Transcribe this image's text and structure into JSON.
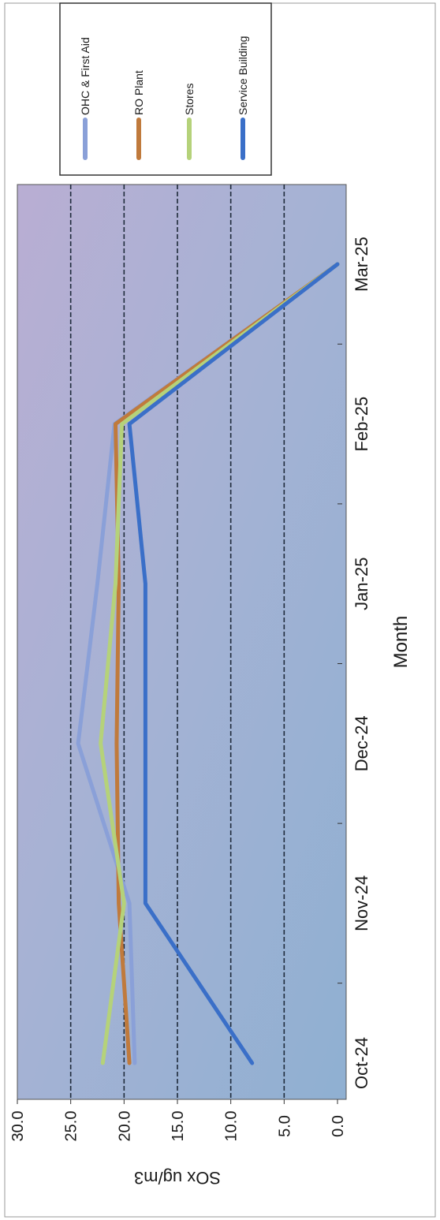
{
  "chart_data": {
    "type": "line",
    "orientation": "rotated-90-clockwise",
    "categories": [
      "Oct-24",
      "Nov-24",
      "Dec-24",
      "Jan-25",
      "Feb-25",
      "Mar-25"
    ],
    "series": [
      {
        "name": "OHC & First Aid",
        "color": "#8aa0d8",
        "values": [
          19.0,
          19.5,
          24.3,
          22.5,
          20.9,
          0.0
        ]
      },
      {
        "name": "RO Plant",
        "color": "#c07a3c",
        "values": [
          19.5,
          20.5,
          20.7,
          20.5,
          20.8,
          0.0
        ]
      },
      {
        "name": "Stores",
        "color": "#b5d27a",
        "values": [
          22.0,
          20.0,
          22.2,
          20.8,
          20.2,
          0.0
        ]
      },
      {
        "name": "Service Building",
        "color": "#3a6fc8",
        "values": [
          8.0,
          18.0,
          18.0,
          18.0,
          19.5,
          0.0
        ]
      }
    ],
    "ylabel": "SOx ug/m3",
    "xlabel": "Month",
    "ylim": [
      0,
      30
    ],
    "yticks": [
      "0.0",
      "5.0",
      "10.0",
      "15.0",
      "20.0",
      "25.0",
      "30.0"
    ],
    "grid": true,
    "legend": "top-right"
  }
}
